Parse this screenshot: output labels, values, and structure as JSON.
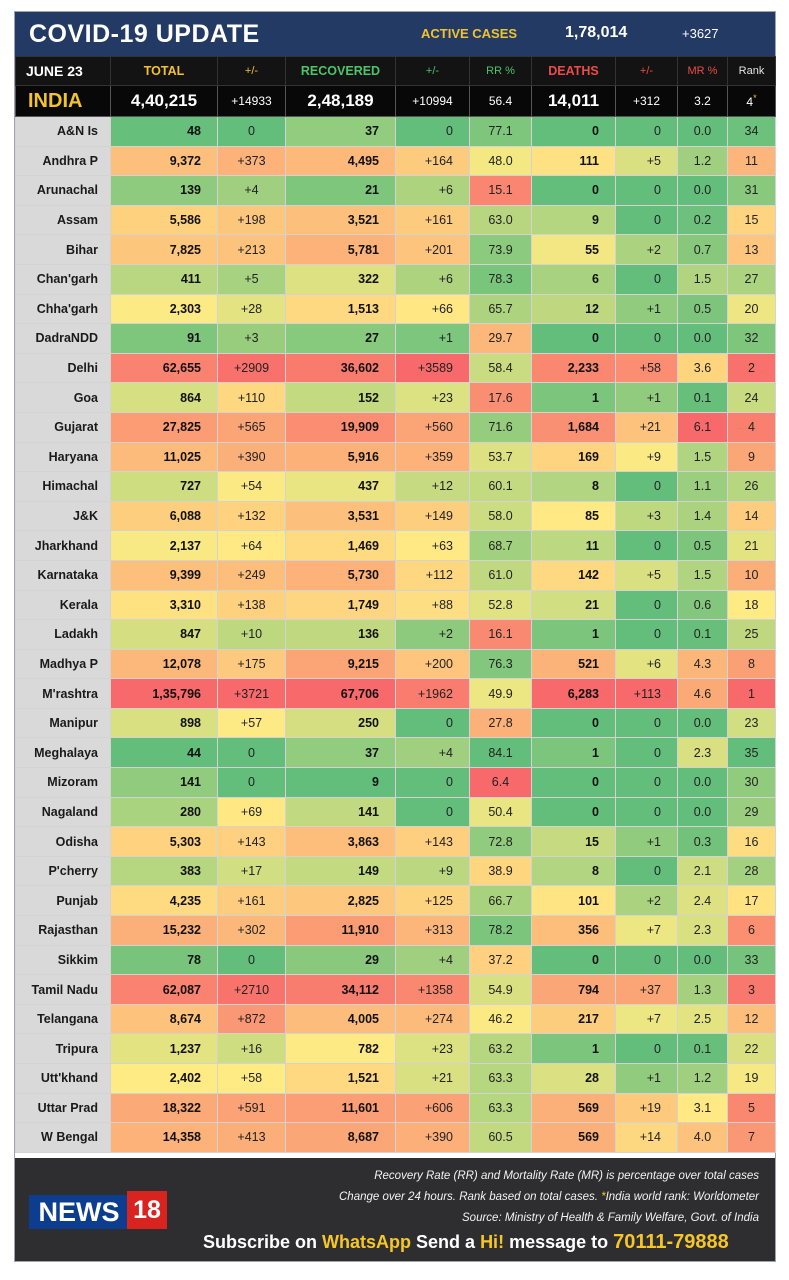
{
  "header": {
    "title": "COVID-19 UPDATE",
    "active_label": "ACTIVE CASES",
    "active_value": "1,78,014",
    "active_change": "+3627"
  },
  "columns": {
    "date": "JUNE 23",
    "total": "TOTAL",
    "total_change": "+/-",
    "recovered": "RECOVERED",
    "recovered_change": "+/-",
    "rr": "RR %",
    "deaths": "DEATHS",
    "deaths_change": "+/-",
    "mr": "MR %",
    "rank": "Rank"
  },
  "india": {
    "name": "INDIA",
    "total": "4,40,215",
    "total_change": "+14933",
    "recovered": "2,48,189",
    "recovered_change": "+10994",
    "rr": "56.4",
    "deaths": "14,011",
    "deaths_change": "+312",
    "mr": "3.2",
    "rank": "4",
    "rank_mark": "*"
  },
  "states": [
    {
      "name": "A&N Is",
      "total": "48",
      "tc": "0",
      "rec": "37",
      "rc": "0",
      "rr": "77.1",
      "deaths": "0",
      "dc": "0",
      "mr": "0.0",
      "rank": "34"
    },
    {
      "name": "Andhra P",
      "total": "9,372",
      "tc": "+373",
      "rec": "4,495",
      "rc": "+164",
      "rr": "48.0",
      "deaths": "111",
      "dc": "+5",
      "mr": "1.2",
      "rank": "11"
    },
    {
      "name": "Arunachal",
      "total": "139",
      "tc": "+4",
      "rec": "21",
      "rc": "+6",
      "rr": "15.1",
      "deaths": "0",
      "dc": "0",
      "mr": "0.0",
      "rank": "31"
    },
    {
      "name": "Assam",
      "total": "5,586",
      "tc": "+198",
      "rec": "3,521",
      "rc": "+161",
      "rr": "63.0",
      "deaths": "9",
      "dc": "0",
      "mr": "0.2",
      "rank": "15"
    },
    {
      "name": "Bihar",
      "total": "7,825",
      "tc": "+213",
      "rec": "5,781",
      "rc": "+201",
      "rr": "73.9",
      "deaths": "55",
      "dc": "+2",
      "mr": "0.7",
      "rank": "13"
    },
    {
      "name": "Chan'garh",
      "total": "411",
      "tc": "+5",
      "rec": "322",
      "rc": "+6",
      "rr": "78.3",
      "deaths": "6",
      "dc": "0",
      "mr": "1.5",
      "rank": "27"
    },
    {
      "name": "Chha'garh",
      "total": "2,303",
      "tc": "+28",
      "rec": "1,513",
      "rc": "+66",
      "rr": "65.7",
      "deaths": "12",
      "dc": "+1",
      "mr": "0.5",
      "rank": "20"
    },
    {
      "name": "DadraNDD",
      "total": "91",
      "tc": "+3",
      "rec": "27",
      "rc": "+1",
      "rr": "29.7",
      "deaths": "0",
      "dc": "0",
      "mr": "0.0",
      "rank": "32"
    },
    {
      "name": "Delhi",
      "total": "62,655",
      "tc": "+2909",
      "rec": "36,602",
      "rc": "+3589",
      "rr": "58.4",
      "deaths": "2,233",
      "dc": "+58",
      "mr": "3.6",
      "rank": "2"
    },
    {
      "name": "Goa",
      "total": "864",
      "tc": "+110",
      "rec": "152",
      "rc": "+23",
      "rr": "17.6",
      "deaths": "1",
      "dc": "+1",
      "mr": "0.1",
      "rank": "24"
    },
    {
      "name": "Gujarat",
      "total": "27,825",
      "tc": "+565",
      "rec": "19,909",
      "rc": "+560",
      "rr": "71.6",
      "deaths": "1,684",
      "dc": "+21",
      "mr": "6.1",
      "rank": "4"
    },
    {
      "name": "Haryana",
      "total": "11,025",
      "tc": "+390",
      "rec": "5,916",
      "rc": "+359",
      "rr": "53.7",
      "deaths": "169",
      "dc": "+9",
      "mr": "1.5",
      "rank": "9"
    },
    {
      "name": "Himachal",
      "total": "727",
      "tc": "+54",
      "rec": "437",
      "rc": "+12",
      "rr": "60.1",
      "deaths": "8",
      "dc": "0",
      "mr": "1.1",
      "rank": "26"
    },
    {
      "name": "J&K",
      "total": "6,088",
      "tc": "+132",
      "rec": "3,531",
      "rc": "+149",
      "rr": "58.0",
      "deaths": "85",
      "dc": "+3",
      "mr": "1.4",
      "rank": "14"
    },
    {
      "name": "Jharkhand",
      "total": "2,137",
      "tc": "+64",
      "rec": "1,469",
      "rc": "+63",
      "rr": "68.7",
      "deaths": "11",
      "dc": "0",
      "mr": "0.5",
      "rank": "21"
    },
    {
      "name": "Karnataka",
      "total": "9,399",
      "tc": "+249",
      "rec": "5,730",
      "rc": "+112",
      "rr": "61.0",
      "deaths": "142",
      "dc": "+5",
      "mr": "1.5",
      "rank": "10"
    },
    {
      "name": "Kerala",
      "total": "3,310",
      "tc": "+138",
      "rec": "1,749",
      "rc": "+88",
      "rr": "52.8",
      "deaths": "21",
      "dc": "0",
      "mr": "0.6",
      "rank": "18"
    },
    {
      "name": "Ladakh",
      "total": "847",
      "tc": "+10",
      "rec": "136",
      "rc": "+2",
      "rr": "16.1",
      "deaths": "1",
      "dc": "0",
      "mr": "0.1",
      "rank": "25"
    },
    {
      "name": "Madhya P",
      "total": "12,078",
      "tc": "+175",
      "rec": "9,215",
      "rc": "+200",
      "rr": "76.3",
      "deaths": "521",
      "dc": "+6",
      "mr": "4.3",
      "rank": "8"
    },
    {
      "name": "M'rashtra",
      "total": "1,35,796",
      "tc": "+3721",
      "rec": "67,706",
      "rc": "+1962",
      "rr": "49.9",
      "deaths": "6,283",
      "dc": "+113",
      "mr": "4.6",
      "rank": "1"
    },
    {
      "name": "Manipur",
      "total": "898",
      "tc": "+57",
      "rec": "250",
      "rc": "0",
      "rr": "27.8",
      "deaths": "0",
      "dc": "0",
      "mr": "0.0",
      "rank": "23"
    },
    {
      "name": "Meghalaya",
      "total": "44",
      "tc": "0",
      "rec": "37",
      "rc": "+4",
      "rr": "84.1",
      "deaths": "1",
      "dc": "0",
      "mr": "2.3",
      "rank": "35"
    },
    {
      "name": "Mizoram",
      "total": "141",
      "tc": "0",
      "rec": "9",
      "rc": "0",
      "rr": "6.4",
      "deaths": "0",
      "dc": "0",
      "mr": "0.0",
      "rank": "30"
    },
    {
      "name": "Nagaland",
      "total": "280",
      "tc": "+69",
      "rec": "141",
      "rc": "0",
      "rr": "50.4",
      "deaths": "0",
      "dc": "0",
      "mr": "0.0",
      "rank": "29"
    },
    {
      "name": "Odisha",
      "total": "5,303",
      "tc": "+143",
      "rec": "3,863",
      "rc": "+143",
      "rr": "72.8",
      "deaths": "15",
      "dc": "+1",
      "mr": "0.3",
      "rank": "16"
    },
    {
      "name": "P'cherry",
      "total": "383",
      "tc": "+17",
      "rec": "149",
      "rc": "+9",
      "rr": "38.9",
      "deaths": "8",
      "dc": "0",
      "mr": "2.1",
      "rank": "28"
    },
    {
      "name": "Punjab",
      "total": "4,235",
      "tc": "+161",
      "rec": "2,825",
      "rc": "+125",
      "rr": "66.7",
      "deaths": "101",
      "dc": "+2",
      "mr": "2.4",
      "rank": "17"
    },
    {
      "name": "Rajasthan",
      "total": "15,232",
      "tc": "+302",
      "rec": "11,910",
      "rc": "+313",
      "rr": "78.2",
      "deaths": "356",
      "dc": "+7",
      "mr": "2.3",
      "rank": "6"
    },
    {
      "name": "Sikkim",
      "total": "78",
      "tc": "0",
      "rec": "29",
      "rc": "+4",
      "rr": "37.2",
      "deaths": "0",
      "dc": "0",
      "mr": "0.0",
      "rank": "33"
    },
    {
      "name": "Tamil Nadu",
      "total": "62,087",
      "tc": "+2710",
      "rec": "34,112",
      "rc": "+1358",
      "rr": "54.9",
      "deaths": "794",
      "dc": "+37",
      "mr": "1.3",
      "rank": "3"
    },
    {
      "name": "Telangana",
      "total": "8,674",
      "tc": "+872",
      "rec": "4,005",
      "rc": "+274",
      "rr": "46.2",
      "deaths": "217",
      "dc": "+7",
      "mr": "2.5",
      "rank": "12"
    },
    {
      "name": "Tripura",
      "total": "1,237",
      "tc": "+16",
      "rec": "782",
      "rc": "+23",
      "rr": "63.2",
      "deaths": "1",
      "dc": "0",
      "mr": "0.1",
      "rank": "22"
    },
    {
      "name": "Utt'khand",
      "total": "2,402",
      "tc": "+58",
      "rec": "1,521",
      "rc": "+21",
      "rr": "63.3",
      "deaths": "28",
      "dc": "+1",
      "mr": "1.2",
      "rank": "19"
    },
    {
      "name": "Uttar Prad",
      "total": "18,322",
      "tc": "+591",
      "rec": "11,601",
      "rc": "+606",
      "rr": "63.3",
      "deaths": "569",
      "dc": "+19",
      "mr": "3.1",
      "rank": "5"
    },
    {
      "name": "W Bengal",
      "total": "14,358",
      "tc": "+413",
      "rec": "8,687",
      "rc": "+390",
      "rr": "60.5",
      "deaths": "569",
      "dc": "+14",
      "mr": "4.0",
      "rank": "7"
    }
  ],
  "footer": {
    "note1": "Recovery Rate (RR) and Mortality Rate (MR) is percentage over total cases",
    "note2_a": "Change over 24 hours. Rank based on total cases. ",
    "note2_star": "*",
    "note2_b": "India world rank: Worldometer",
    "note3": "Source: Ministry of Health & Family Welfare, Govt. of India",
    "logo_news": "NEWS",
    "logo_num": "18",
    "subscribe_1": "Subscribe on ",
    "subscribe_whatsapp": "WhatsApp",
    "subscribe_2": " Send a ",
    "subscribe_hi": "Hi!",
    "subscribe_3": " message to ",
    "subscribe_phone": "70111-79888"
  },
  "colors": {
    "header_bg": "#223a64",
    "accent_yellow": "#f2c230",
    "heat_green": "#63be7b",
    "heat_yellow": "#ffeb84",
    "heat_red": "#f8696b"
  }
}
